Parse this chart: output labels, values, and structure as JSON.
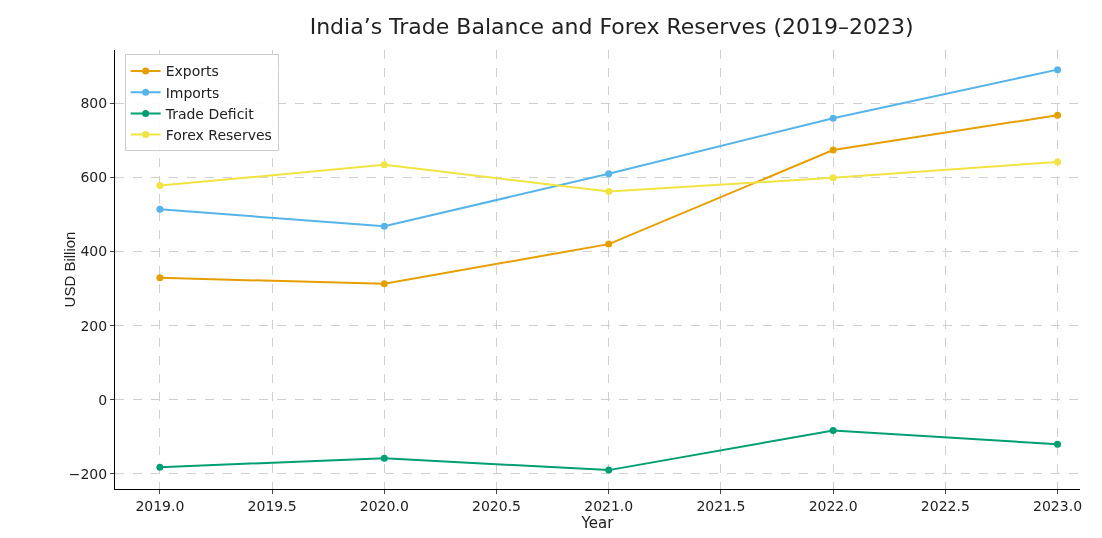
{
  "chart_data": {
    "type": "line",
    "title": "India’s Trade Balance and Forex Reserves (2019–2023)",
    "xlabel": "Year",
    "ylabel": "USD Billion",
    "x": [
      2019,
      2020,
      2021,
      2022,
      2023
    ],
    "series": [
      {
        "name": "Exports",
        "color": "#e69f00",
        "values": [
          329,
          313,
          420,
          674,
          768
        ]
      },
      {
        "name": "Imports",
        "color": "#56b4e9",
        "values": [
          514,
          468,
          610,
          760,
          891
        ]
      },
      {
        "name": "Trade Deficit",
        "color": "#009e73",
        "values": [
          -182,
          -158,
          -190,
          -83,
          -120
        ]
      },
      {
        "name": "Forex Reserves",
        "color": "#f0e442",
        "values": [
          578,
          634,
          562,
          599,
          642
        ]
      }
    ],
    "xlim": [
      2018.8,
      2023.1
    ],
    "xticks": [
      {
        "value": 2019,
        "label": "2019.0"
      },
      {
        "value": 2019.5,
        "label": "2019.5"
      },
      {
        "value": 2020,
        "label": "2020.0"
      },
      {
        "value": 2020.5,
        "label": "2020.5"
      },
      {
        "value": 2021,
        "label": "2021.0"
      },
      {
        "value": 2021.5,
        "label": "2021.5"
      },
      {
        "value": 2022,
        "label": "2022.0"
      },
      {
        "value": 2022.5,
        "label": "2022.5"
      },
      {
        "value": 2023,
        "label": "2023.0"
      }
    ],
    "ylim": [
      -241,
      944
    ],
    "yticks": [
      {
        "value": -200,
        "label": "−200"
      },
      0,
      200,
      400,
      600,
      800
    ],
    "grid": true,
    "legend": "top left",
    "marker": "circle",
    "line_style": "solid"
  }
}
